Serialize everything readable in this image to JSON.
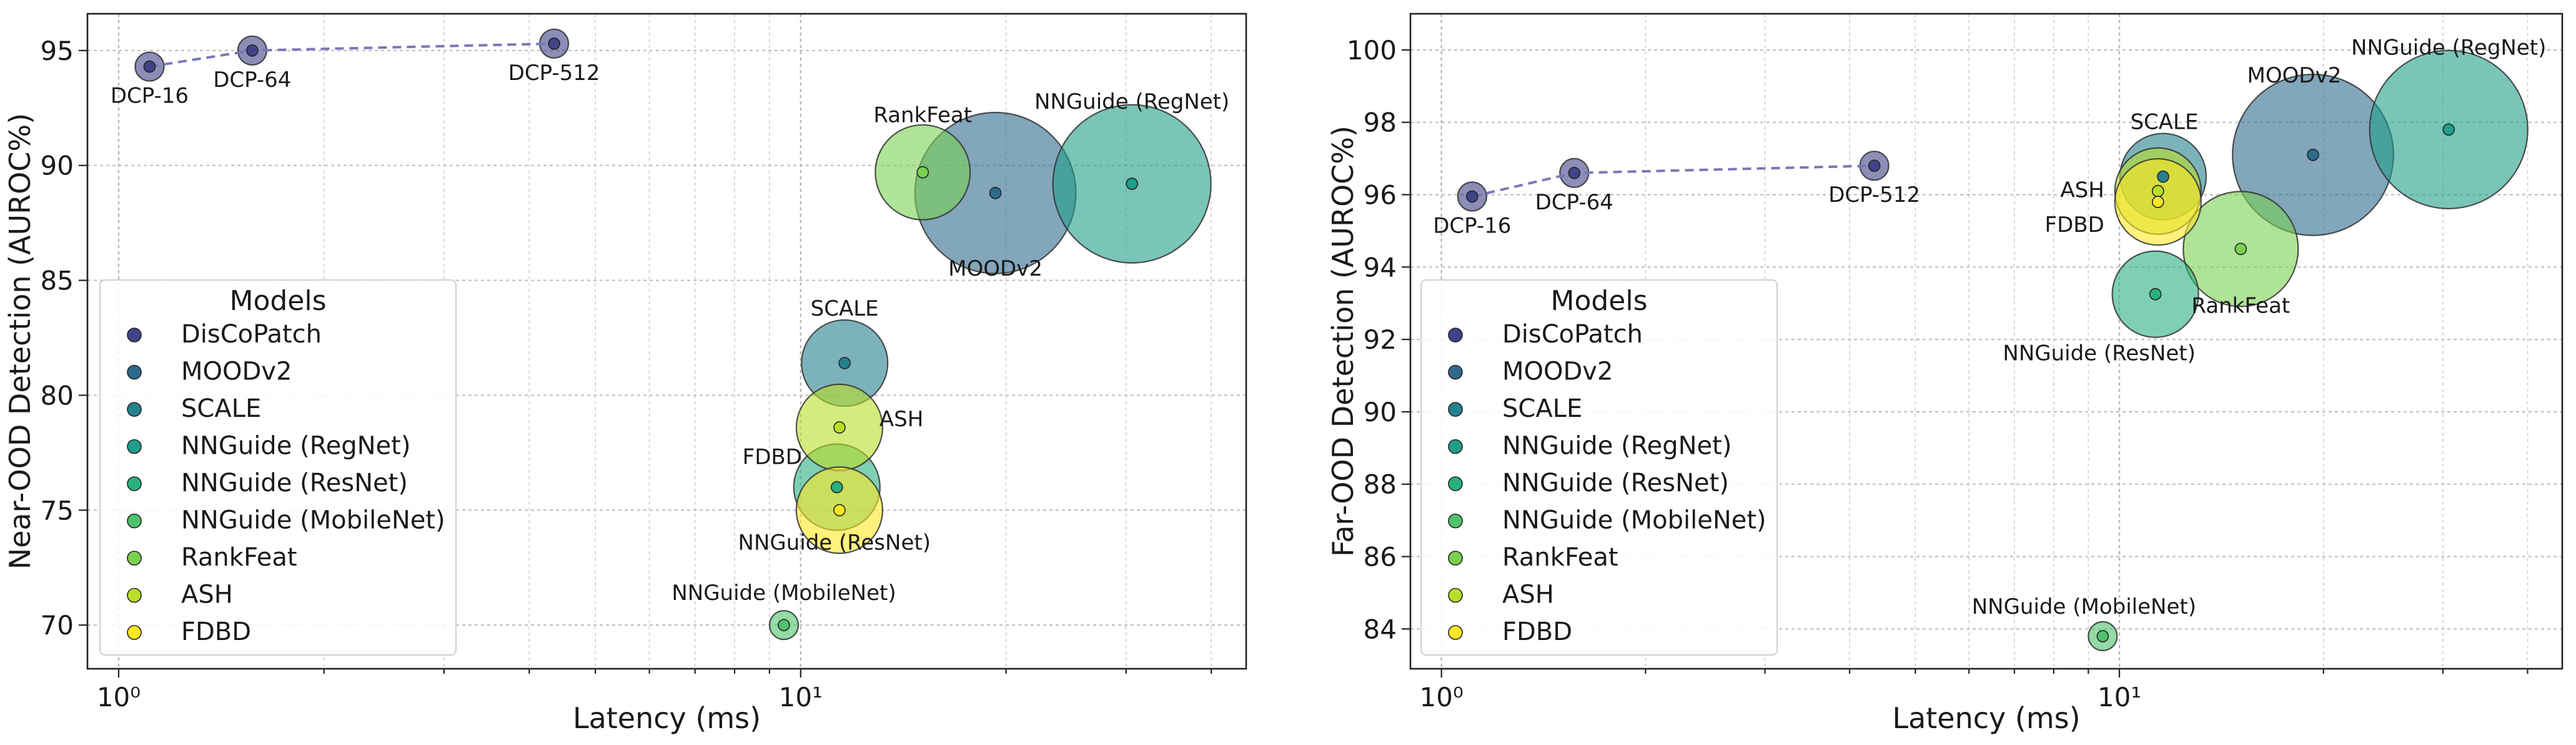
{
  "chart_data": [
    {
      "type": "scatter",
      "xlabel": "Latency (ms)",
      "ylabel": "Near-OOD Detection (AUROC%)",
      "xscale": "log",
      "xlim": [
        0.9,
        45
      ],
      "ylim": [
        68.1,
        96.6
      ],
      "xticks": [
        {
          "value": 1,
          "label": "10⁰"
        },
        {
          "value": 10,
          "label": "10¹"
        }
      ],
      "yticks": [
        70,
        75,
        80,
        85,
        90,
        95
      ],
      "grid": true,
      "legend": {
        "title": "Models",
        "location": "lower-left"
      },
      "dcp_curve": [
        "DCP-16",
        "DCP-64",
        "DCP-512"
      ],
      "points": [
        {
          "label": "DCP-16",
          "model": "DisCoPatch",
          "x": 1.11,
          "y": 94.3,
          "size": 1.0
        },
        {
          "label": "DCP-64",
          "model": "DisCoPatch",
          "x": 1.57,
          "y": 95.0,
          "size": 1.0
        },
        {
          "label": "DCP-512",
          "model": "DisCoPatch",
          "x": 4.35,
          "y": 95.3,
          "size": 1.0
        },
        {
          "label": "MOODv2",
          "model": "MOODv2",
          "x": 19.3,
          "y": 88.8,
          "size": 5.6
        },
        {
          "label": "SCALE",
          "model": "SCALE",
          "x": 11.6,
          "y": 81.4,
          "size": 3.0
        },
        {
          "label": "NNGuide (RegNet)",
          "model": "NNGuide (RegNet)",
          "x": 30.6,
          "y": 89.2,
          "size": 5.5
        },
        {
          "label": "NNGuide (ResNet)",
          "model": "NNGuide (ResNet)",
          "x": 11.3,
          "y": 76.0,
          "size": 3.0
        },
        {
          "label": "NNGuide (MobileNet)",
          "model": "NNGuide (MobileNet)",
          "x": 9.45,
          "y": 70.0,
          "size": 1.0
        },
        {
          "label": "RankFeat",
          "model": "RankFeat",
          "x": 15.1,
          "y": 89.7,
          "size": 3.3
        },
        {
          "label": "ASH",
          "model": "ASH",
          "x": 11.4,
          "y": 78.6,
          "size": 3.0
        },
        {
          "label": "FDBD",
          "model": "FDBD",
          "x": 11.4,
          "y": 75.0,
          "size": 3.0
        }
      ]
    },
    {
      "type": "scatter",
      "xlabel": "Latency (ms)",
      "ylabel": "Far-OOD Detection (AUROC%)",
      "xscale": "log",
      "xlim": [
        0.9,
        45
      ],
      "ylim": [
        82.9,
        101.0
      ],
      "xticks": [
        {
          "value": 1,
          "label": "10⁰"
        },
        {
          "value": 10,
          "label": "10¹"
        }
      ],
      "yticks": [
        84,
        86,
        88,
        90,
        92,
        94,
        96,
        98,
        100
      ],
      "grid": true,
      "legend": {
        "title": "Models",
        "location": "lower-left"
      },
      "dcp_curve": [
        "DCP-16",
        "DCP-64",
        "DCP-512"
      ],
      "points": [
        {
          "label": "DCP-16",
          "model": "DisCoPatch",
          "x": 1.11,
          "y": 95.95,
          "size": 1.0
        },
        {
          "label": "DCP-64",
          "model": "DisCoPatch",
          "x": 1.57,
          "y": 96.6,
          "size": 1.0
        },
        {
          "label": "DCP-512",
          "model": "DisCoPatch",
          "x": 4.35,
          "y": 96.8,
          "size": 1.0
        },
        {
          "label": "MOODv2",
          "model": "MOODv2",
          "x": 19.3,
          "y": 97.1,
          "size": 5.6
        },
        {
          "label": "SCALE",
          "model": "SCALE",
          "x": 11.6,
          "y": 96.5,
          "size": 3.0
        },
        {
          "label": "NNGuide (RegNet)",
          "model": "NNGuide (RegNet)",
          "x": 30.6,
          "y": 97.8,
          "size": 5.5
        },
        {
          "label": "NNGuide (ResNet)",
          "model": "NNGuide (ResNet)",
          "x": 11.3,
          "y": 93.25,
          "size": 3.0
        },
        {
          "label": "NNGuide (MobileNet)",
          "model": "NNGuide (MobileNet)",
          "x": 9.45,
          "y": 83.8,
          "size": 1.0
        },
        {
          "label": "RankFeat",
          "model": "RankFeat",
          "x": 15.1,
          "y": 94.5,
          "size": 4.0
        },
        {
          "label": "ASH",
          "model": "ASH",
          "x": 11.4,
          "y": 96.1,
          "size": 3.0
        },
        {
          "label": "FDBD",
          "model": "FDBD",
          "x": 11.4,
          "y": 95.8,
          "size": 3.0
        }
      ]
    }
  ],
  "legend_entries": [
    {
      "name": "DisCoPatch",
      "color": "#404387"
    },
    {
      "name": "MOODv2",
      "color": "#2e6a8e"
    },
    {
      "name": "SCALE",
      "color": "#25818e"
    },
    {
      "name": "NNGuide (RegNet)",
      "color": "#1f9e89"
    },
    {
      "name": "NNGuide (ResNet)",
      "color": "#2ab07f"
    },
    {
      "name": "NNGuide (MobileNet)",
      "color": "#4ec36b"
    },
    {
      "name": "RankFeat",
      "color": "#7ad151"
    },
    {
      "name": "ASH",
      "color": "#bade28"
    },
    {
      "name": "FDBD",
      "color": "#fde725"
    }
  ],
  "curve_color": "#7a78b6"
}
